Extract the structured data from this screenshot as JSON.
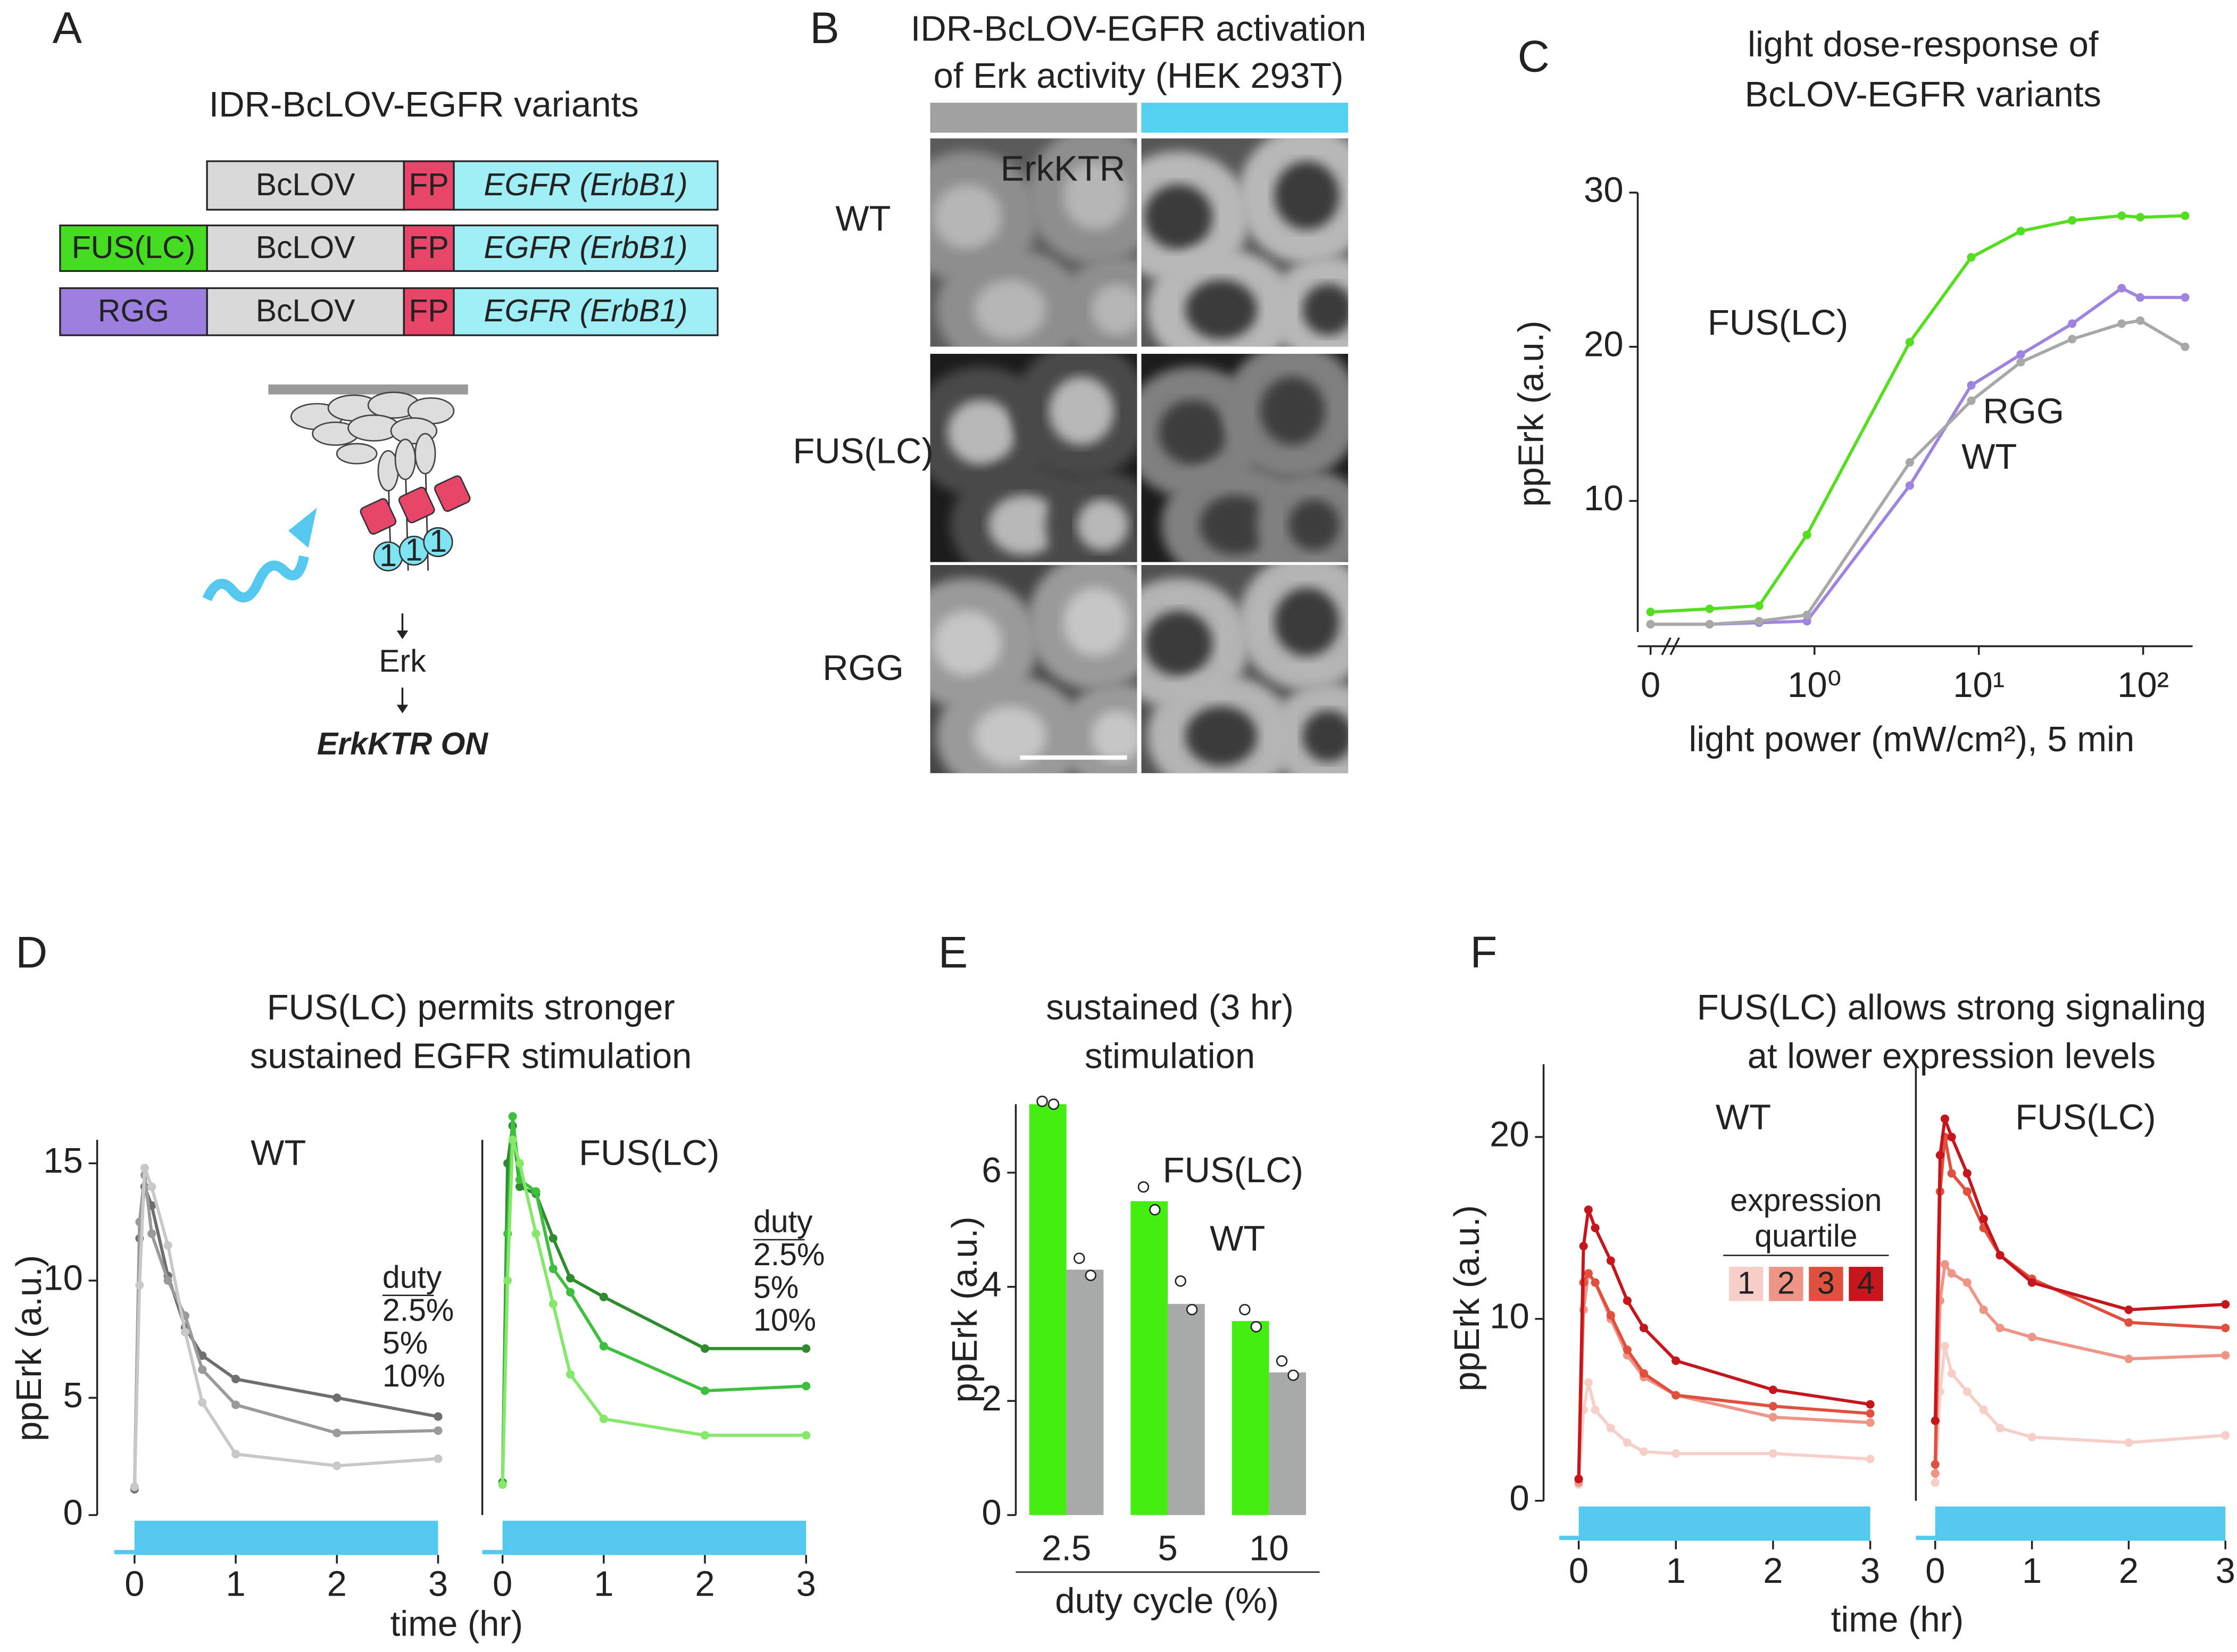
{
  "panel_letters": [
    "A",
    "B",
    "C",
    "D",
    "E",
    "F"
  ],
  "diagram": {
    "title": "IDR-BcLOV-EGFR variants",
    "constructs": [
      [
        "BcLOV",
        "FP",
        "EGFR (ErbB1)"
      ],
      [
        "FUS(LC)",
        "BcLOV",
        "FP",
        "EGFR (ErbB1)"
      ],
      [
        "RGG",
        "BcLOV",
        "FP",
        "EGFR (ErbB1)"
      ]
    ],
    "domain_labels": [
      "1",
      "1",
      "1"
    ],
    "readouts": [
      "Erk",
      "ErkKTR ON"
    ]
  },
  "micrographs": {
    "title": [
      "IDR-BcLOV-EGFR activation",
      "of Erk activity (HEK 293T)"
    ],
    "rows": [
      "WT",
      "FUS(LC)",
      "RGG"
    ],
    "stain": "ErkKTR"
  },
  "group_titles": [
    [
      "FUS(LC) permits stronger",
      "sustained EGFR stimulation"
    ],
    [
      "FUS(LC) allows strong signaling",
      "at lower expression levels"
    ]
  ],
  "group_xlabels": [
    "time (hr)",
    "time (hr)"
  ],
  "chart_data": [
    {
      "type": "line",
      "title": [
        "light dose-response of",
        "BcLOV-EGFR variants"
      ],
      "xlabel": "light power (mW/cm²), 5 min",
      "ylabel": "ppErk (a.u.)",
      "xscale": "log",
      "xlim": [
        0.15,
        200
      ],
      "ylim": [
        1.5,
        30
      ],
      "xticks": [
        0,
        {
          "value": 1,
          "label": "10⁰"
        },
        {
          "value": 10,
          "label": "10¹"
        },
        {
          "value": 100,
          "label": "10²"
        }
      ],
      "yticks": [
        10,
        20,
        30
      ],
      "x": [
        0,
        0.23,
        0.46,
        0.9,
        3.8,
        9,
        18,
        37,
        74,
        96,
        180
      ],
      "series": [
        {
          "name": "FUS(LC)",
          "color": "#55dd22",
          "values": [
            2.8,
            3.0,
            3.2,
            7.8,
            20.3,
            25.8,
            27.5,
            28.2,
            28.5,
            28.4,
            28.5
          ]
        },
        {
          "name": "RGG",
          "color": "#9f83e0",
          "values": [
            2.0,
            2.0,
            2.1,
            2.2,
            11,
            17.5,
            19.5,
            21.5,
            23.8,
            23.2,
            23.2
          ]
        },
        {
          "name": "WT",
          "color": "#a8a8a8",
          "values": [
            2.0,
            2.0,
            2.2,
            2.6,
            12.5,
            16.5,
            19,
            20.5,
            21.5,
            21.7,
            20
          ]
        }
      ]
    },
    {
      "type": "line",
      "title": "WT",
      "ylabel": "ppErk (a.u.)",
      "legend_title": "duty",
      "xlim": [
        -0.2,
        3
      ],
      "ylim": [
        0,
        16
      ],
      "xticks": [
        0,
        1,
        2,
        3
      ],
      "yticks": [
        0,
        5,
        10,
        15
      ],
      "x": [
        0,
        0.05,
        0.1,
        0.17,
        0.33,
        0.5,
        0.67,
        1,
        2,
        3
      ],
      "series": [
        {
          "name": "2.5%",
          "color": "#6e6e6e",
          "values": [
            1.1,
            11.8,
            14.0,
            13.2,
            10.2,
            8.0,
            6.8,
            5.8,
            5.0,
            4.2
          ]
        },
        {
          "name": "5%",
          "color": "#9a9a9a",
          "values": [
            1.2,
            12.5,
            14.5,
            12.0,
            10.0,
            8.5,
            6.2,
            4.7,
            3.5,
            3.6
          ]
        },
        {
          "name": "10%",
          "color": "#c8c8c8",
          "values": [
            1.2,
            9.8,
            14.8,
            14.0,
            11.5,
            7.8,
            4.8,
            2.6,
            2.1,
            2.4
          ]
        }
      ]
    },
    {
      "type": "line",
      "title": "FUS(LC)",
      "legend_title": "duty",
      "xlim": [
        -0.2,
        3
      ],
      "ylim": [
        0,
        16
      ],
      "xticks": [
        0,
        1,
        2,
        3
      ],
      "x": [
        0,
        0.05,
        0.1,
        0.17,
        0.33,
        0.5,
        0.67,
        1,
        2,
        3
      ],
      "series": [
        {
          "name": "2.5%",
          "color": "#2e8b2e",
          "values": [
            1.4,
            15.0,
            16.6,
            14.0,
            13.7,
            11.8,
            10.1,
            9.3,
            7.1,
            7.1
          ]
        },
        {
          "name": "5%",
          "color": "#3fbf3f",
          "values": [
            1.3,
            12.0,
            17.0,
            14.3,
            13.8,
            10.5,
            9.5,
            7.2,
            5.3,
            5.5
          ]
        },
        {
          "name": "10%",
          "color": "#86e86a",
          "values": [
            1.3,
            10.0,
            16.0,
            15.0,
            12.0,
            9.0,
            6.0,
            4.1,
            3.4,
            3.4
          ]
        }
      ]
    },
    {
      "type": "bar",
      "title": [
        "sustained (3 hr)",
        "stimulation"
      ],
      "xlabel": "duty cycle (%)",
      "ylabel": "ppErk (a.u.)",
      "categories": [
        "2.5",
        "5",
        "10"
      ],
      "ylim": [
        0,
        7.2
      ],
      "yticks": [
        0,
        2,
        4,
        6
      ],
      "series": [
        {
          "name": "FUS(LC)",
          "color": "#44ee11",
          "values": [
            7.2,
            5.5,
            3.4
          ],
          "replicates": [
            [
              7.25,
              7.2
            ],
            [
              5.75,
              5.35
            ],
            [
              3.6,
              3.3
            ]
          ]
        },
        {
          "name": "WT",
          "color": "#a8aaaa",
          "values": [
            4.3,
            3.7,
            2.5
          ],
          "replicates": [
            [
              4.5,
              4.2
            ],
            [
              4.1,
              3.6
            ],
            [
              2.7,
              2.45
            ]
          ]
        }
      ]
    },
    {
      "type": "line",
      "title": "WT",
      "ylabel": "ppErk (a.u.)",
      "legend_title": [
        "expression",
        "quartile"
      ],
      "xlim": [
        -0.2,
        3
      ],
      "ylim": [
        0,
        24
      ],
      "xticks": [
        0,
        1,
        2,
        3
      ],
      "yticks": [
        0,
        10,
        20
      ],
      "x": [
        0,
        0.05,
        0.1,
        0.17,
        0.33,
        0.5,
        0.67,
        1,
        2,
        3
      ],
      "series": [
        {
          "name": "1",
          "color": "#f6cfc8",
          "values": [
            0.9,
            5,
            6.5,
            5,
            4,
            3.2,
            2.7,
            2.6,
            2.6,
            2.3
          ]
        },
        {
          "name": "2",
          "color": "#ef9588",
          "values": [
            1,
            10.5,
            12.5,
            12,
            10,
            8,
            6.8,
            5.8,
            4.6,
            4.3
          ]
        },
        {
          "name": "3",
          "color": "#e0503f",
          "values": [
            1.2,
            12,
            12.5,
            12,
            10.2,
            8.3,
            7,
            5.8,
            5.2,
            4.8
          ]
        },
        {
          "name": "4",
          "color": "#c4161c",
          "values": [
            1.2,
            14,
            16,
            15,
            13.2,
            11,
            9.5,
            7.7,
            6.1,
            5.3
          ]
        }
      ]
    },
    {
      "type": "line",
      "title": "FUS(LC)",
      "xlim": [
        -0.2,
        3
      ],
      "ylim": [
        0,
        24
      ],
      "xticks": [
        0,
        1,
        2,
        3
      ],
      "x": [
        0,
        0.05,
        0.1,
        0.17,
        0.33,
        0.5,
        0.67,
        1,
        2,
        3
      ],
      "series": [
        {
          "name": "1",
          "color": "#f6cfc8",
          "values": [
            1,
            6,
            8.5,
            7,
            6,
            5,
            4,
            3.5,
            3.2,
            3.6
          ]
        },
        {
          "name": "2",
          "color": "#ef9588",
          "values": [
            1.5,
            11,
            13,
            12.5,
            12,
            10.5,
            9.5,
            9.0,
            7.8,
            8.0
          ]
        },
        {
          "name": "3",
          "color": "#e0503f",
          "values": [
            2,
            17,
            20,
            18,
            17,
            15,
            13.5,
            12.2,
            9.8,
            9.5
          ]
        },
        {
          "name": "4",
          "color": "#c4161c",
          "values": [
            4.4,
            19,
            21,
            20,
            18,
            15.5,
            13.5,
            12,
            10.5,
            10.8
          ]
        }
      ]
    }
  ]
}
